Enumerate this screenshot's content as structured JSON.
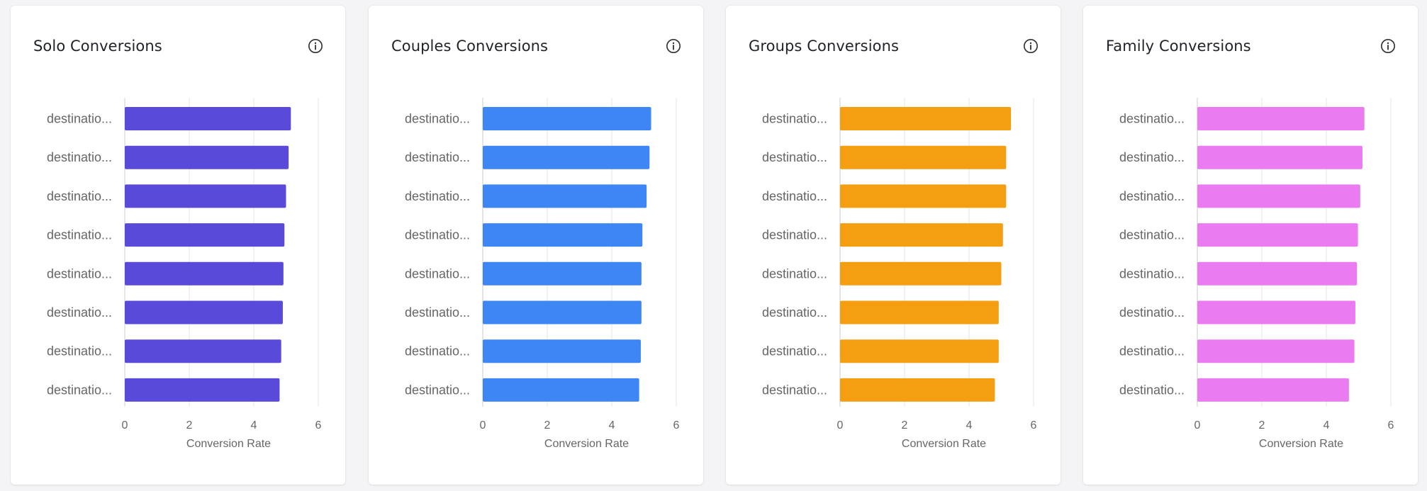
{
  "chart_data": [
    {
      "type": "bar",
      "orientation": "horizontal",
      "title": "Solo Conversions",
      "color": "#5a4ad9",
      "categories": [
        "destinatio...",
        "destinatio...",
        "destinatio...",
        "destinatio...",
        "destinatio...",
        "destinatio...",
        "destinatio...",
        "destinatio..."
      ],
      "values": [
        5.15,
        5.08,
        5.0,
        4.95,
        4.92,
        4.9,
        4.85,
        4.8
      ],
      "xlabel": "Conversion Rate",
      "xticks": [
        "0",
        "2",
        "4",
        "6"
      ],
      "xlim": [
        0,
        6
      ],
      "grid": true
    },
    {
      "type": "bar",
      "orientation": "horizontal",
      "title": "Couples Conversions",
      "color": "#3f86f5",
      "categories": [
        "destinatio...",
        "destinatio...",
        "destinatio...",
        "destinatio...",
        "destinatio...",
        "destinatio...",
        "destinatio...",
        "destinatio..."
      ],
      "values": [
        5.22,
        5.17,
        5.08,
        4.95,
        4.92,
        4.92,
        4.9,
        4.85
      ],
      "xlabel": "Conversion Rate",
      "xticks": [
        "0",
        "2",
        "4",
        "6"
      ],
      "xlim": [
        0,
        6
      ],
      "grid": true
    },
    {
      "type": "bar",
      "orientation": "horizontal",
      "title": "Groups Conversions",
      "color": "#f39f11",
      "categories": [
        "destinatio...",
        "destinatio...",
        "destinatio...",
        "destinatio...",
        "destinatio...",
        "destinatio...",
        "destinatio...",
        "destinatio..."
      ],
      "values": [
        5.3,
        5.15,
        5.15,
        5.05,
        5.0,
        4.92,
        4.92,
        4.8
      ],
      "xlabel": "Conversion Rate",
      "xticks": [
        "0",
        "2",
        "4",
        "6"
      ],
      "xlim": [
        0,
        6
      ],
      "grid": true
    },
    {
      "type": "bar",
      "orientation": "horizontal",
      "title": "Family Conversions",
      "color": "#ea7bf1",
      "categories": [
        "destinatio...",
        "destinatio...",
        "destinatio...",
        "destinatio...",
        "destinatio...",
        "destinatio...",
        "destinatio...",
        "destinatio..."
      ],
      "values": [
        5.18,
        5.12,
        5.05,
        4.98,
        4.95,
        4.9,
        4.87,
        4.7
      ],
      "xlabel": "Conversion Rate",
      "xticks": [
        "0",
        "2",
        "4",
        "6"
      ],
      "xlim": [
        0,
        6
      ],
      "grid": true
    }
  ],
  "cards": [
    {
      "title": "Solo Conversions",
      "info_icon": "info-circle-icon"
    },
    {
      "title": "Couples Conversions",
      "info_icon": "info-circle-icon"
    },
    {
      "title": "Groups Conversions",
      "info_icon": "info-circle-icon"
    },
    {
      "title": "Family Conversions",
      "info_icon": "info-circle-icon"
    }
  ],
  "colors": {
    "gridline": "#e6e6e6",
    "axis": "#cccccc",
    "label": "#666666"
  }
}
